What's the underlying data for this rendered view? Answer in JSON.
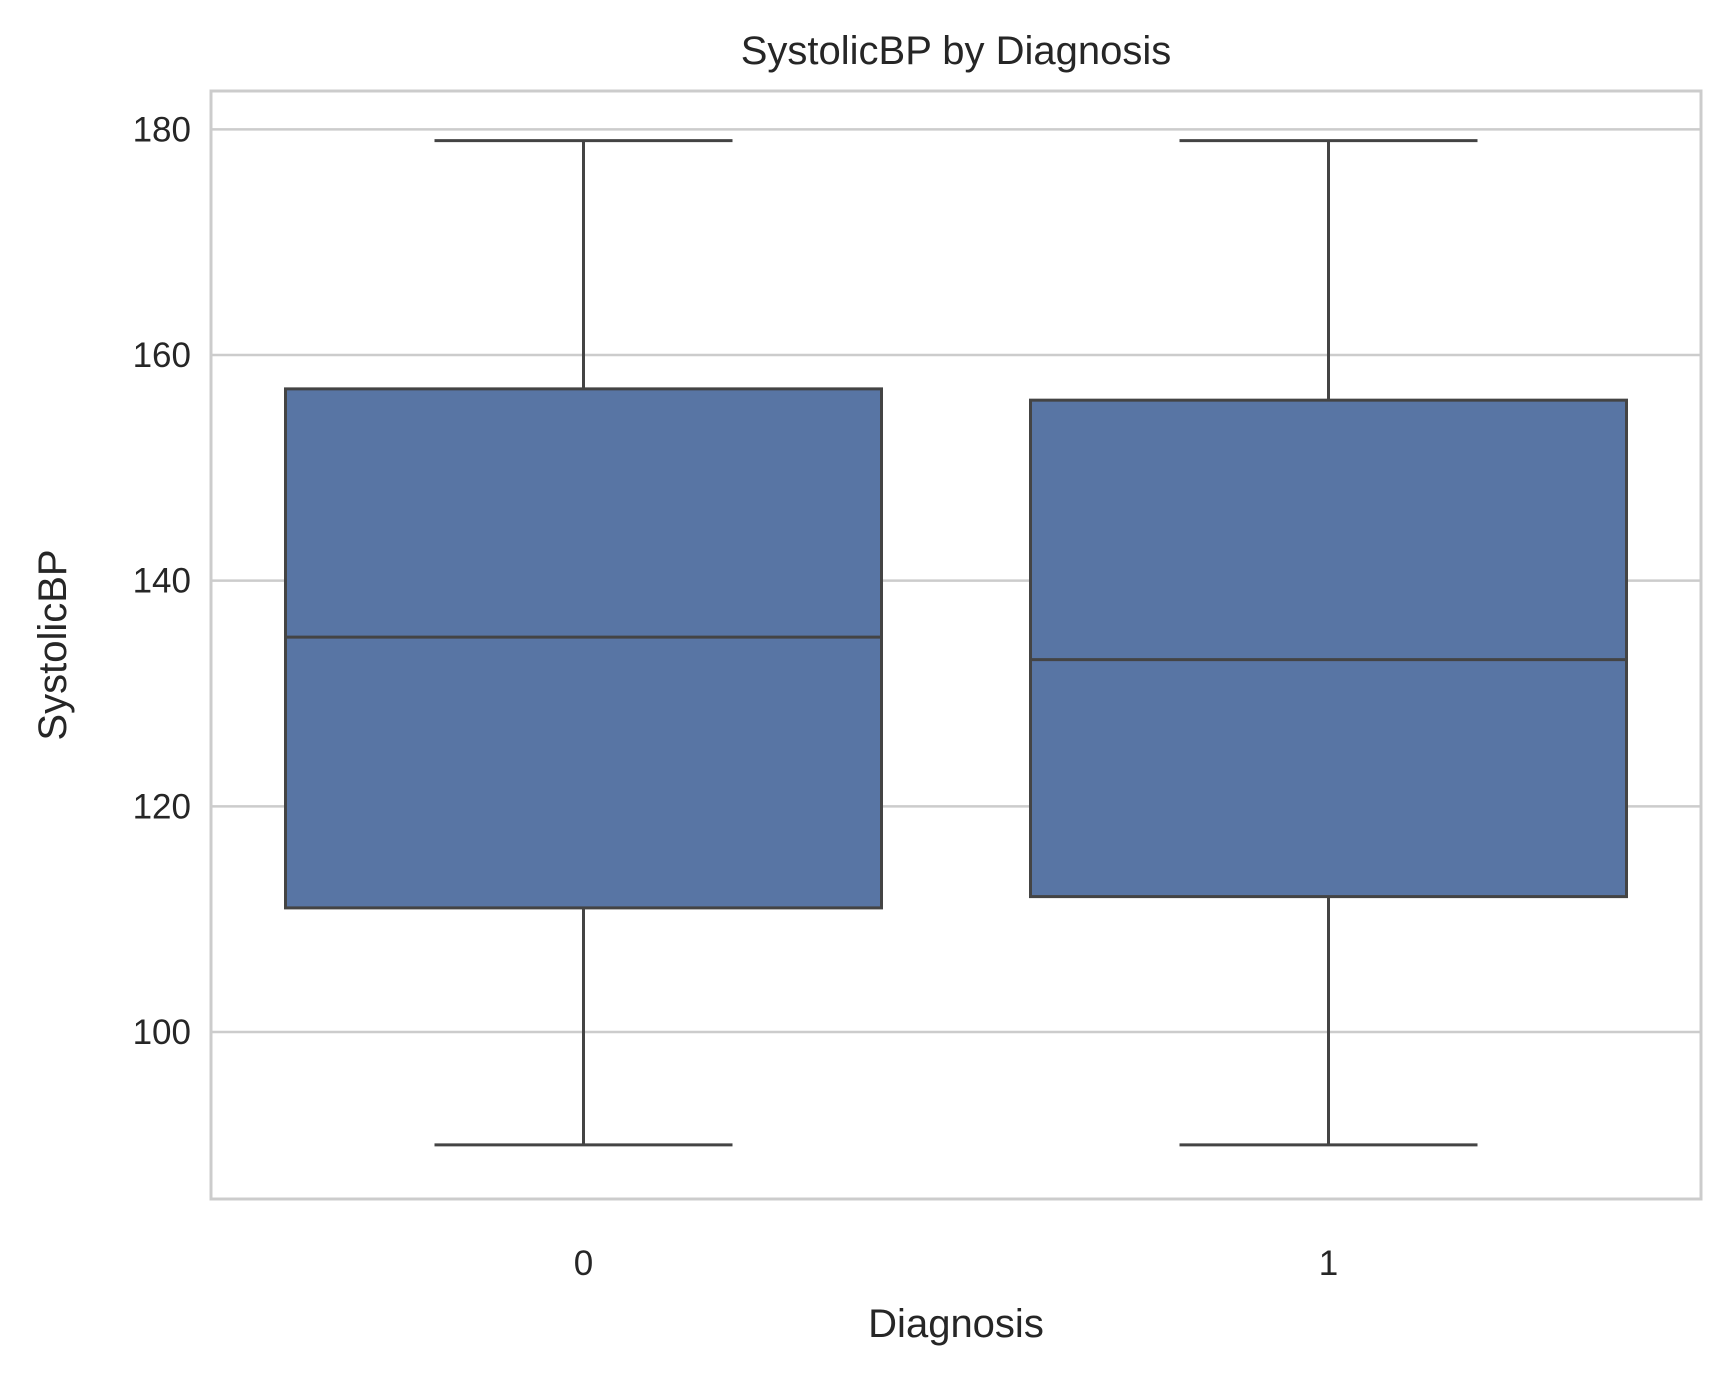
{
  "chart_data": {
    "type": "box",
    "title": "SystolicBP by Diagnosis",
    "xlabel": "Diagnosis",
    "ylabel": "SystolicBP",
    "categories": [
      "0",
      "1"
    ],
    "ylim": [
      85.2,
      183.4
    ],
    "yticks": [
      100,
      120,
      140,
      160,
      180
    ],
    "grid": true,
    "boxes": [
      {
        "category": "0",
        "whisker_low": 90,
        "q1": 111,
        "median": 135,
        "q3": 157,
        "whisker_high": 179
      },
      {
        "category": "1",
        "whisker_low": 90,
        "q1": 112,
        "median": 133,
        "q3": 156,
        "whisker_high": 179
      }
    ]
  },
  "colors": {
    "box_fill": "#5875A4",
    "box_edge": "#444444",
    "grid": "#cccccc",
    "frame": "#cccccc",
    "text": "#262626"
  }
}
